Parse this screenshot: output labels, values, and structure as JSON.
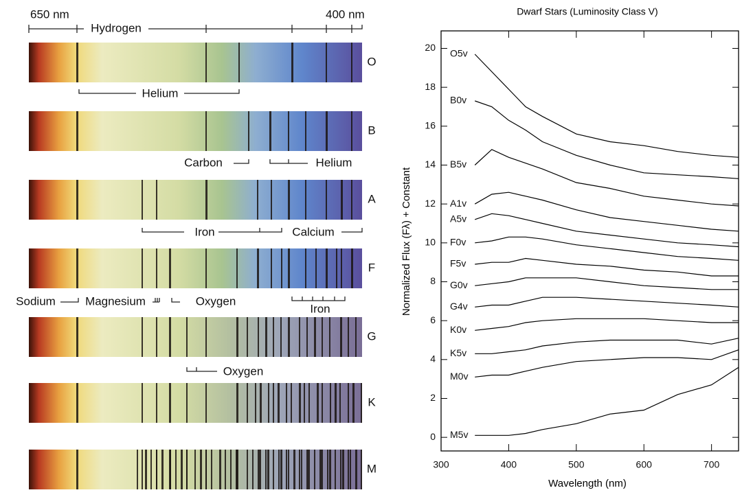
{
  "spectra": {
    "left_label": "650 nm",
    "right_label": "400 nm",
    "classes": [
      "O",
      "B",
      "A",
      "F",
      "G",
      "K",
      "M"
    ],
    "annotations": [
      "Hydrogen",
      "Helium",
      "Carbon",
      "Helium",
      "Iron",
      "Calcium",
      "Sodium",
      "Magnesium",
      "Oxygen",
      "Iron",
      "Oxygen"
    ]
  },
  "chart_data": {
    "type": "line",
    "title": "Dwarf Stars (Luminosity Class V)",
    "x_label": "Wavelength (nm)",
    "y_label": "Normalized Flux (Fλ) + Constant",
    "x": [
      350,
      375,
      400,
      425,
      450,
      500,
      550,
      600,
      650,
      700,
      740
    ],
    "xlim": [
      300,
      740
    ],
    "xticks": [
      300,
      400,
      500,
      600,
      700
    ],
    "ylim": [
      -0.7,
      20.9
    ],
    "yticks": [
      0,
      2,
      4,
      6,
      8,
      10,
      12,
      14,
      16,
      18,
      20
    ],
    "series": [
      {
        "name": "O5v",
        "color": "#000000",
        "values": [
          19.7,
          18.8,
          17.9,
          17.0,
          16.5,
          15.6,
          15.2,
          15.0,
          14.7,
          14.5,
          14.4
        ]
      },
      {
        "name": "B0v",
        "color": "#000000",
        "values": [
          17.3,
          17.0,
          16.3,
          15.8,
          15.2,
          14.5,
          14.0,
          13.6,
          13.5,
          13.4,
          13.3
        ]
      },
      {
        "name": "B5v",
        "color": "#000000",
        "values": [
          14.0,
          14.8,
          14.4,
          14.1,
          13.8,
          13.1,
          12.8,
          12.4,
          12.2,
          12.0,
          11.9
        ]
      },
      {
        "name": "A1v",
        "color": "#000000",
        "values": [
          12.0,
          12.5,
          12.6,
          12.4,
          12.2,
          11.7,
          11.3,
          11.1,
          10.9,
          10.7,
          10.6
        ]
      },
      {
        "name": "A5v",
        "color": "#000000",
        "values": [
          11.2,
          11.5,
          11.4,
          11.2,
          11.0,
          10.6,
          10.4,
          10.2,
          10.0,
          9.9,
          9.8
        ]
      },
      {
        "name": "F0v",
        "color": "#000000",
        "values": [
          10.0,
          10.1,
          10.3,
          10.3,
          10.2,
          9.9,
          9.7,
          9.5,
          9.3,
          9.2,
          9.1
        ]
      },
      {
        "name": "F5v",
        "color": "#000000",
        "values": [
          8.9,
          9.0,
          9.0,
          9.2,
          9.1,
          8.9,
          8.8,
          8.6,
          8.5,
          8.3,
          8.3
        ]
      },
      {
        "name": "G0v",
        "color": "#000000",
        "values": [
          7.8,
          7.9,
          8.0,
          8.2,
          8.2,
          8.2,
          8.0,
          7.8,
          7.7,
          7.6,
          7.6
        ]
      },
      {
        "name": "G4v",
        "color": "#000000",
        "values": [
          6.7,
          6.8,
          6.8,
          7.0,
          7.2,
          7.2,
          7.1,
          7.0,
          6.9,
          6.8,
          6.7
        ]
      },
      {
        "name": "K0v",
        "color": "#000000",
        "values": [
          5.5,
          5.6,
          5.7,
          5.9,
          6.0,
          6.1,
          6.1,
          6.1,
          6.0,
          5.9,
          5.9
        ]
      },
      {
        "name": "K5v",
        "color": "#000000",
        "values": [
          4.3,
          4.3,
          4.4,
          4.5,
          4.7,
          4.9,
          5.0,
          5.0,
          5.0,
          4.8,
          5.1
        ]
      },
      {
        "name": "M0v",
        "color": "#000000",
        "values": [
          3.1,
          3.2,
          3.2,
          3.4,
          3.6,
          3.9,
          4.0,
          4.1,
          4.1,
          4.0,
          4.5
        ]
      },
      {
        "name": "M5v",
        "color": "#000000",
        "values": [
          0.1,
          0.1,
          0.1,
          0.2,
          0.4,
          0.7,
          1.2,
          1.4,
          2.2,
          2.7,
          3.6
        ]
      }
    ]
  }
}
